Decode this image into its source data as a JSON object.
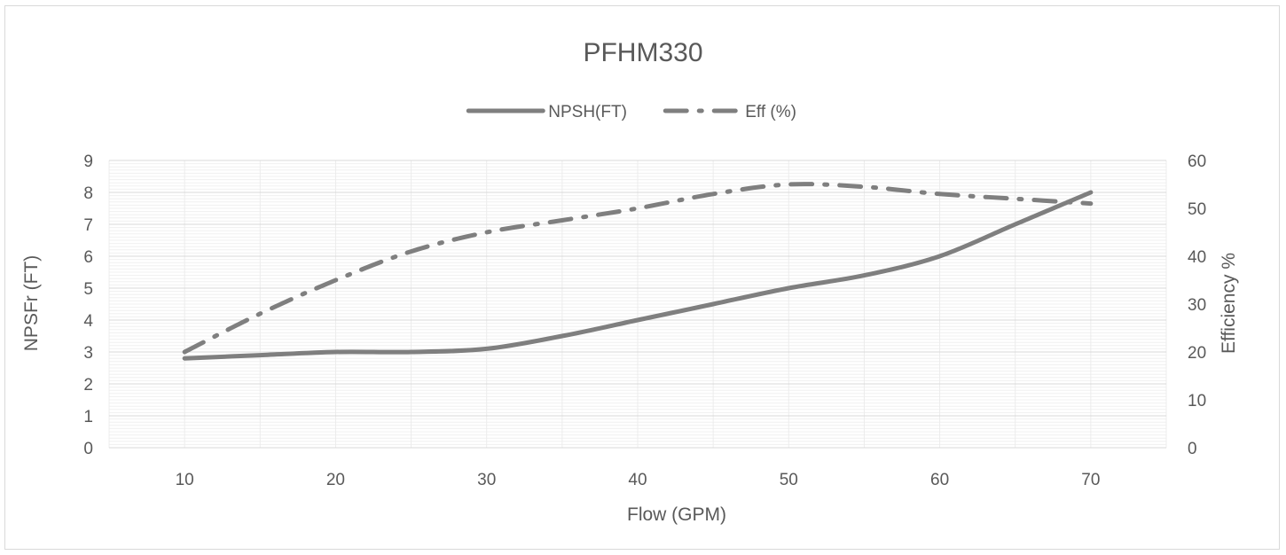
{
  "chart_data": {
    "type": "line",
    "title": "PFHM330",
    "xlabel": "Flow (GPM)",
    "ylabel": "NPSFr (FT)",
    "y2label": "Efficiency  %",
    "x_ticks": [
      "10",
      "20",
      "30",
      "40",
      "50",
      "60",
      "70"
    ],
    "y_ticks": [
      "0",
      "1",
      "2",
      "3",
      "4",
      "5",
      "6",
      "7",
      "8",
      "9"
    ],
    "y2_ticks": [
      "0",
      "10",
      "20",
      "30",
      "40",
      "50",
      "60"
    ],
    "xlim": [
      5,
      75
    ],
    "ylim": [
      0,
      9
    ],
    "y2lim": [
      0,
      60
    ],
    "grid": true,
    "legend_position": "top",
    "series": [
      {
        "name": "NPSH(FT)",
        "axis": "left",
        "style": "solid",
        "color": "#7f7f7f",
        "x": [
          10,
          15,
          20,
          25,
          30,
          35,
          40,
          45,
          50,
          55,
          60,
          65,
          70
        ],
        "values": [
          2.8,
          2.9,
          3.0,
          3.0,
          3.1,
          3.5,
          4.0,
          4.5,
          5.0,
          5.4,
          6.0,
          7.0,
          8.0
        ]
      },
      {
        "name": "Eff (%)",
        "axis": "right",
        "style": "dash-dot",
        "color": "#7f7f7f",
        "x": [
          10,
          15,
          20,
          25,
          30,
          35,
          40,
          45,
          50,
          55,
          60,
          65,
          70
        ],
        "values": [
          20,
          28,
          35,
          41,
          45,
          47.5,
          50,
          53,
          55,
          54.5,
          53,
          52,
          51
        ]
      }
    ]
  }
}
